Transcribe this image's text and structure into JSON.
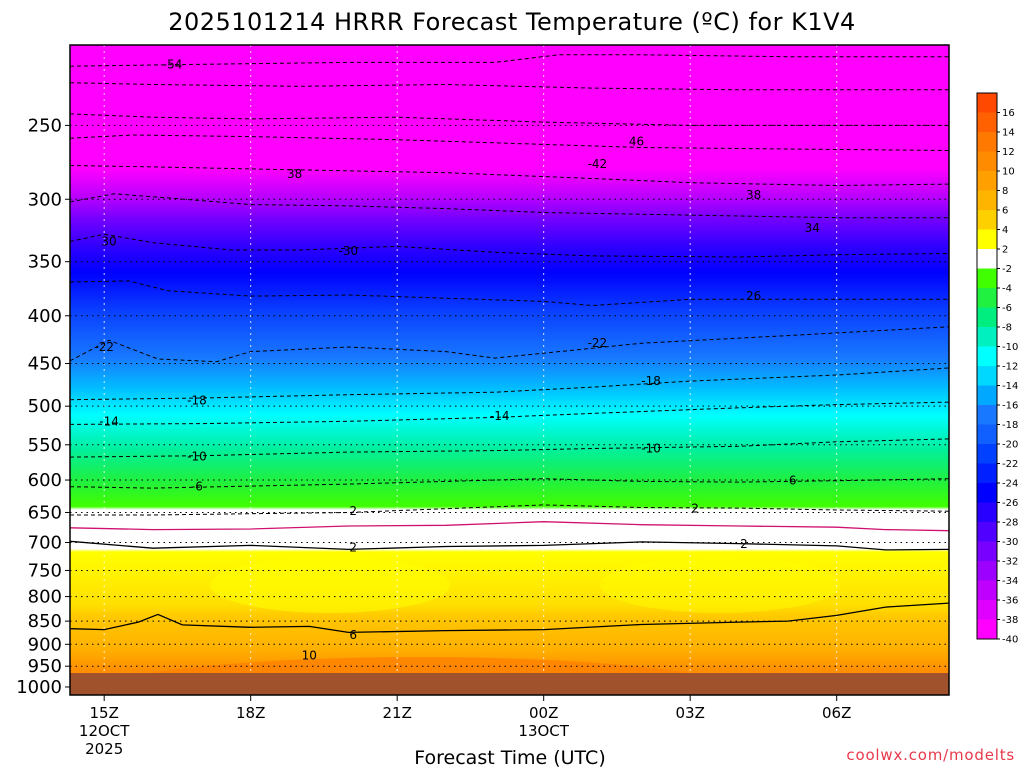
{
  "chart_data": {
    "type": "contour",
    "title": "2025101214 HRRR Forecast Temperature (ºC) for K1V4",
    "xlabel": "Forecast Time (UTC)",
    "ylabel": "",
    "credit": "coolwx.com/modelts",
    "y_axis": {
      "quantity": "pressure (hPa)",
      "scale": "log",
      "inverted": true,
      "range": [
        1020,
        205
      ],
      "tick_values": [
        250,
        300,
        350,
        400,
        450,
        500,
        550,
        600,
        650,
        700,
        750,
        800,
        850,
        900,
        950,
        1000
      ],
      "tick_labels": [
        "250",
        "300",
        "350",
        "400",
        "450",
        "500",
        "550",
        "600",
        "650",
        "700",
        "750",
        "800",
        "850",
        "900",
        "950",
        "1000"
      ]
    },
    "x_axis": {
      "quantity": "forecast time (hours UTC)",
      "range": [
        14.3,
        32.3
      ],
      "tick_values": [
        15,
        18,
        21,
        24,
        27,
        30
      ],
      "tick_labels": [
        {
          "line1": "15Z",
          "line2": "12OCT",
          "line3": "2025"
        },
        {
          "line1": "18Z",
          "line2": "",
          "line3": ""
        },
        {
          "line1": "21Z",
          "line2": "",
          "line3": ""
        },
        {
          "line1": "00Z",
          "line2": "13OCT",
          "line3": ""
        },
        {
          "line1": "03Z",
          "line2": "",
          "line3": ""
        },
        {
          "line1": "06Z",
          "line2": "",
          "line3": ""
        }
      ]
    },
    "grid": true,
    "colorbar": {
      "placement": "right",
      "labels": [
        "16",
        "14",
        "12",
        "10",
        "8",
        "6",
        "4",
        "2",
        "-2",
        "-4",
        "-6",
        "-8",
        "-10",
        "-12",
        "-14",
        "-16",
        "-18",
        "-20",
        "-22",
        "-24",
        "-26",
        "-28",
        "-30",
        "-32",
        "-34",
        "-36",
        "-38",
        "-40"
      ],
      "colors": [
        "#ff4800",
        "#ff6000",
        "#ff7800",
        "#ff8c00",
        "#ffa000",
        "#ffb400",
        "#ffd000",
        "#ffff00",
        "#ffffff",
        "#40ff00",
        "#20f040",
        "#00ee80",
        "#00f0c0",
        "#00ffff",
        "#00d8ff",
        "#00a8ff",
        "#1878ff",
        "#1060ff",
        "#0040ff",
        "#0020ff",
        "#0000ff",
        "#2800ff",
        "#5000ff",
        "#7800ff",
        "#9c00ff",
        "#c000ff",
        "#e000ff",
        "#ff00ff"
      ]
    },
    "isotherm_levels": [
      -54,
      -50,
      -46,
      -42,
      -38,
      -34,
      -30,
      -26,
      -22,
      -18,
      -14,
      -10,
      -6,
      -2,
      2,
      6,
      10,
      14
    ],
    "isotherm_labels": [
      {
        "value": "-54",
        "time": 16.4,
        "pressure": 215
      },
      {
        "value": "46",
        "time": 25.9,
        "pressure": 260
      },
      {
        "value": "-42",
        "time": 25.1,
        "pressure": 275
      },
      {
        "value": "38",
        "time": 18.9,
        "pressure": 282
      },
      {
        "value": "38",
        "time": 28.3,
        "pressure": 297
      },
      {
        "value": "34",
        "time": 29.5,
        "pressure": 322
      },
      {
        "value": "30",
        "time": 15.1,
        "pressure": 333
      },
      {
        "value": "-30",
        "time": 20.0,
        "pressure": 341
      },
      {
        "value": "26",
        "time": 28.3,
        "pressure": 381
      },
      {
        "value": "-22",
        "time": 15.0,
        "pressure": 432
      },
      {
        "value": "-22",
        "time": 25.1,
        "pressure": 428
      },
      {
        "value": "-18",
        "time": 16.9,
        "pressure": 493
      },
      {
        "value": "-18",
        "time": 26.2,
        "pressure": 470
      },
      {
        "value": "-14",
        "time": 15.1,
        "pressure": 519
      },
      {
        "value": "-14",
        "time": 23.1,
        "pressure": 512
      },
      {
        "value": "-10",
        "time": 16.9,
        "pressure": 566
      },
      {
        "value": "-10",
        "time": 26.2,
        "pressure": 555
      },
      {
        "value": "-6",
        "time": 16.9,
        "pressure": 610
      },
      {
        "value": "6",
        "time": 29.1,
        "pressure": 601
      },
      {
        "value": "2",
        "time": 20.1,
        "pressure": 648
      },
      {
        "value": "2",
        "time": 27.1,
        "pressure": 644
      },
      {
        "value": "2",
        "time": 20.1,
        "pressure": 709
      },
      {
        "value": "2",
        "time": 28.1,
        "pressure": 703
      },
      {
        "value": "6",
        "time": 20.1,
        "pressure": 880
      },
      {
        "value": "10",
        "time": 19.2,
        "pressure": 925
      }
    ],
    "isotherm_lines": [
      {
        "style": "dashed",
        "points": [
          [
            14.3,
            216
          ],
          [
            17,
            215
          ],
          [
            20,
            214
          ],
          [
            23,
            214
          ],
          [
            24.3,
            210
          ],
          [
            26,
            210
          ],
          [
            29,
            211
          ],
          [
            32.3,
            211
          ]
        ]
      },
      {
        "style": "dashed",
        "points": [
          [
            14.3,
            225
          ],
          [
            16,
            226
          ],
          [
            19,
            227
          ],
          [
            22,
            226
          ],
          [
            25,
            228
          ],
          [
            28,
            229
          ],
          [
            32.3,
            229
          ]
        ]
      },
      {
        "style": "dashed",
        "points": [
          [
            14.3,
            243
          ],
          [
            16,
            245
          ],
          [
            18,
            246
          ],
          [
            21,
            245
          ],
          [
            24,
            248
          ],
          [
            27,
            250
          ],
          [
            32.3,
            250
          ]
        ]
      },
      {
        "style": "dashed",
        "points": [
          [
            14.3,
            258
          ],
          [
            15.6,
            256
          ],
          [
            18,
            257
          ],
          [
            21,
            259
          ],
          [
            24,
            262
          ],
          [
            26,
            264
          ],
          [
            29,
            265
          ],
          [
            32.3,
            266
          ]
        ]
      },
      {
        "style": "dashed",
        "points": [
          [
            14.3,
            276
          ],
          [
            16,
            277
          ],
          [
            19,
            279
          ],
          [
            22,
            281
          ],
          [
            25,
            285
          ],
          [
            27,
            288
          ],
          [
            30,
            290
          ],
          [
            32.3,
            289
          ]
        ]
      },
      {
        "style": "dashed",
        "points": [
          [
            14.3,
            302
          ],
          [
            15.2,
            296
          ],
          [
            16.3,
            299
          ],
          [
            18,
            304
          ],
          [
            20,
            305
          ],
          [
            22,
            307
          ],
          [
            24,
            310
          ],
          [
            27,
            312
          ],
          [
            30,
            314
          ],
          [
            32.3,
            314
          ]
        ]
      },
      {
        "style": "dashed",
        "points": [
          [
            14.3,
            333
          ],
          [
            15,
            327
          ],
          [
            16,
            334
          ],
          [
            17.6,
            340
          ],
          [
            19,
            340
          ],
          [
            21,
            337
          ],
          [
            23,
            342
          ],
          [
            25,
            345
          ],
          [
            28,
            346
          ],
          [
            30,
            344
          ],
          [
            32.3,
            343
          ]
        ]
      },
      {
        "style": "dashed",
        "points": [
          [
            14.3,
            368
          ],
          [
            15.5,
            367
          ],
          [
            16.3,
            376
          ],
          [
            18,
            381
          ],
          [
            20,
            380
          ],
          [
            22,
            383
          ],
          [
            24,
            386
          ],
          [
            25,
            390
          ],
          [
            27,
            384
          ],
          [
            30,
            384
          ],
          [
            32.3,
            384
          ]
        ]
      },
      {
        "style": "dashed",
        "points": [
          [
            14.3,
            447
          ],
          [
            15.1,
            425
          ],
          [
            16.1,
            445
          ],
          [
            17.3,
            448
          ],
          [
            18,
            437
          ],
          [
            20,
            432
          ],
          [
            22,
            437
          ],
          [
            23,
            444
          ],
          [
            24.5,
            436
          ],
          [
            26,
            428
          ],
          [
            29,
            420
          ],
          [
            32.3,
            411
          ]
        ]
      },
      {
        "style": "dashed",
        "points": [
          [
            14.3,
            492
          ],
          [
            17,
            490
          ],
          [
            20,
            486
          ],
          [
            23,
            483
          ],
          [
            25,
            477
          ],
          [
            27,
            470
          ],
          [
            30,
            463
          ],
          [
            32.3,
            455
          ]
        ]
      },
      {
        "style": "dashed",
        "points": [
          [
            14.3,
            523
          ],
          [
            17,
            522
          ],
          [
            20,
            519
          ],
          [
            23,
            514
          ],
          [
            25,
            509
          ],
          [
            28,
            502
          ],
          [
            30,
            498
          ],
          [
            32.3,
            495
          ]
        ]
      },
      {
        "style": "dashed",
        "points": [
          [
            14.3,
            567
          ],
          [
            17,
            565
          ],
          [
            20,
            560
          ],
          [
            23,
            558
          ],
          [
            25,
            555
          ],
          [
            28,
            552
          ],
          [
            30,
            546
          ],
          [
            32.3,
            542
          ]
        ]
      },
      {
        "style": "dashed",
        "points": [
          [
            14.3,
            610
          ],
          [
            16,
            612
          ],
          [
            18,
            609
          ],
          [
            20,
            606
          ],
          [
            22,
            602
          ],
          [
            24,
            598
          ],
          [
            26,
            602
          ],
          [
            28,
            603
          ],
          [
            30,
            601
          ],
          [
            32.3,
            598
          ]
        ]
      },
      {
        "style": "dashed",
        "points": [
          [
            14.3,
            654
          ],
          [
            16,
            654
          ],
          [
            18,
            652
          ],
          [
            20,
            650
          ],
          [
            22,
            644
          ],
          [
            24,
            638
          ],
          [
            26,
            642
          ],
          [
            28,
            643
          ],
          [
            30,
            646
          ],
          [
            32.3,
            648
          ]
        ]
      },
      {
        "style": "solid",
        "points": [
          [
            14.3,
            698
          ],
          [
            16,
            710
          ],
          [
            18,
            705
          ],
          [
            20,
            712
          ],
          [
            22,
            707
          ],
          [
            24,
            705
          ],
          [
            26,
            699
          ],
          [
            28,
            702
          ],
          [
            30,
            706
          ],
          [
            31,
            713
          ],
          [
            32.3,
            712
          ]
        ]
      },
      {
        "style": "solid",
        "points": [
          [
            14.3,
            866
          ],
          [
            15,
            868
          ],
          [
            15.7,
            852
          ],
          [
            16.1,
            836
          ],
          [
            16.6,
            858
          ],
          [
            18,
            863
          ],
          [
            19.2,
            861
          ],
          [
            20,
            874
          ],
          [
            22,
            870
          ],
          [
            24,
            868
          ],
          [
            26,
            857
          ],
          [
            28,
            852
          ],
          [
            29,
            850
          ],
          [
            30,
            838
          ],
          [
            31,
            821
          ],
          [
            32.3,
            813
          ]
        ]
      },
      {
        "style": "solid",
        "points": [
          [
            15.7,
            1015
          ],
          [
            16.5,
            1003
          ],
          [
            17.5,
            982
          ],
          [
            19,
            970
          ],
          [
            20,
            972
          ],
          [
            22,
            975
          ],
          [
            24,
            980
          ],
          [
            26,
            985
          ],
          [
            28,
            992
          ],
          [
            29.5,
            1010
          ]
        ]
      },
      {
        "style": "solid",
        "points": [
          [
            16.6,
            1015
          ],
          [
            17.5,
            1002
          ],
          [
            19,
            997
          ],
          [
            20.5,
            996
          ],
          [
            21.5,
            1001
          ],
          [
            22.2,
            1012
          ]
        ]
      }
    ],
    "freezing_line": {
      "color": "#d01070",
      "points": [
        [
          14.3,
          675
        ],
        [
          16,
          678
        ],
        [
          18,
          677
        ],
        [
          20,
          672
        ],
        [
          22,
          671
        ],
        [
          24,
          665
        ],
        [
          26,
          670
        ],
        [
          28,
          672
        ],
        [
          30,
          674
        ],
        [
          31,
          678
        ],
        [
          32.3,
          680
        ]
      ]
    }
  }
}
